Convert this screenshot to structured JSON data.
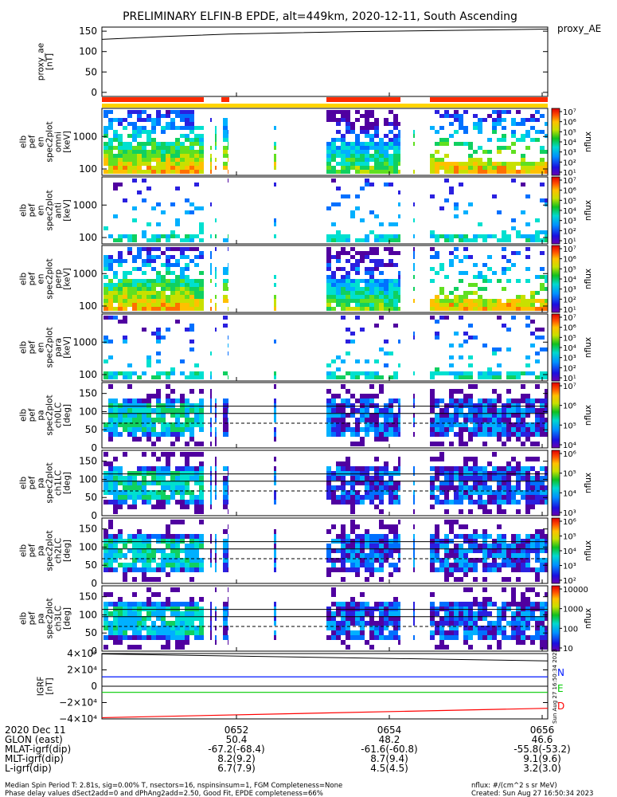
{
  "title": "PRELIMINARY ELFIN-B EPDE, alt=449km, 2020-12-11, South Ascending",
  "colors": {
    "bar_red": "#ff2a00",
    "bar_yellow": "#ffd400",
    "north": "#0018ff",
    "east": "#00cc00",
    "down": "#ff0000",
    "black": "#000000"
  },
  "chart_data": [
    {
      "type": "line",
      "panel": "proxy_ae",
      "ylabel": [
        "proxy_ae",
        "[nT]"
      ],
      "side_label": "proxy_AE",
      "ylim": [
        -10,
        160
      ],
      "yticks": [
        "150",
        "100",
        "50",
        "0"
      ],
      "x": [
        "0650.4",
        "0651",
        "0652",
        "0653",
        "0654",
        "0655",
        "0656",
        "0656.8"
      ],
      "values": [
        130,
        137,
        143,
        146,
        149,
        151,
        153,
        155
      ]
    },
    {
      "type": "heatmap",
      "panel": "elb_pef_en_spec2plot_omni",
      "ylabel": [
        "elb",
        "pef",
        "en",
        "spec2plot",
        "omni",
        "[keV]"
      ],
      "y_scale": "log",
      "yticks": [
        "1000",
        "100"
      ],
      "colorbar": {
        "label": "nflux",
        "ticks": [
          "10⁷",
          "10⁶",
          "10⁵",
          "10⁴",
          "10³",
          "10²",
          "10¹"
        ]
      }
    },
    {
      "type": "heatmap",
      "panel": "elb_pef_en_spec2plot_anti",
      "ylabel": [
        "elb",
        "pef",
        "en",
        "spec2plot",
        "anti",
        "[keV]"
      ],
      "y_scale": "log",
      "yticks": [
        "1000",
        "100"
      ],
      "colorbar": {
        "label": "nflux",
        "ticks": [
          "10⁷",
          "10⁶",
          "10⁵",
          "10⁴",
          "10³",
          "10²",
          "10¹"
        ]
      }
    },
    {
      "type": "heatmap",
      "panel": "elb_pef_en_spec2plot_perp",
      "ylabel": [
        "elb",
        "pef",
        "en",
        "spec2plot",
        "perp",
        "[keV]"
      ],
      "y_scale": "log",
      "yticks": [
        "1000",
        "100"
      ],
      "colorbar": {
        "label": "nflux",
        "ticks": [
          "10⁷",
          "10⁶",
          "10⁵",
          "10⁴",
          "10³",
          "10²",
          "10¹"
        ]
      }
    },
    {
      "type": "heatmap",
      "panel": "elb_pef_en_spec2plot_para",
      "ylabel": [
        "elb",
        "pef",
        "en",
        "spec2plot",
        "para",
        "[keV]"
      ],
      "y_scale": "log",
      "yticks": [
        "1000",
        "100"
      ],
      "colorbar": {
        "label": "nflux",
        "ticks": [
          "10⁷",
          "10⁶",
          "10⁵",
          "10⁴",
          "10³",
          "10²",
          "10¹"
        ]
      }
    },
    {
      "type": "heatmap",
      "panel": "elb_pef_pa_spec2plot_ch0LC",
      "ylabel": [
        "elb",
        "pef",
        "pa",
        "spec2plot",
        "ch0LC",
        "[deg]"
      ],
      "ylim": [
        0,
        180
      ],
      "yticks": [
        "150",
        "100",
        "50",
        "0"
      ],
      "colorbar": {
        "label": "nflux",
        "ticks": [
          "10⁷",
          "10⁶",
          "10⁵",
          "10⁴"
        ]
      }
    },
    {
      "type": "heatmap",
      "panel": "elb_pef_pa_spec2plot_ch1LC",
      "ylabel": [
        "elb",
        "pef",
        "pa",
        "spec2plot",
        "ch1LC",
        "[deg]"
      ],
      "ylim": [
        0,
        180
      ],
      "yticks": [
        "150",
        "100",
        "50",
        "0"
      ],
      "colorbar": {
        "label": "nflux",
        "ticks": [
          "10⁶",
          "10⁵",
          "10⁴",
          "10³"
        ]
      }
    },
    {
      "type": "heatmap",
      "panel": "elb_pef_pa_spec2plot_ch2LC",
      "ylabel": [
        "elb",
        "pef",
        "pa",
        "spec2plot",
        "ch2LC",
        "[deg]"
      ],
      "ylim": [
        0,
        180
      ],
      "yticks": [
        "150",
        "100",
        "50",
        "0"
      ],
      "colorbar": {
        "label": "nflux",
        "ticks": [
          "10⁶",
          "10⁵",
          "10⁴",
          "10³",
          "10²"
        ]
      }
    },
    {
      "type": "heatmap",
      "panel": "elb_pef_pa_spec2plot_ch3LC",
      "ylabel": [
        "elb",
        "pef",
        "pa",
        "spec2plot",
        "ch3LC",
        "[deg]"
      ],
      "ylim": [
        0,
        180
      ],
      "yticks": [
        "150",
        "100",
        "50",
        "0"
      ],
      "colorbar": {
        "label": "nflux",
        "ticks": [
          "10000",
          "1000",
          "100",
          "10"
        ]
      }
    },
    {
      "type": "line",
      "panel": "igrf",
      "ylabel": [
        "IGRF",
        "[nT]"
      ],
      "ylim": [
        -40000,
        40000
      ],
      "yticks": [
        "4×10⁴",
        "2×10⁴",
        "0",
        "−2×10⁴",
        "−4×10⁴"
      ],
      "x": [
        "0650.4",
        "0656.8"
      ],
      "series": [
        {
          "name": "N",
          "values": [
            11500,
            11500
          ]
        },
        {
          "name": "E",
          "values": [
            -7500,
            -7500
          ]
        },
        {
          "name": "D",
          "values": [
            -38500,
            -27000
          ]
        }
      ],
      "black_line": [
        39500,
        31000
      ]
    }
  ],
  "footer_strip": "Sun Aug 27 16:50:34 2023",
  "time_axis": {
    "row_labels": [
      "2020 Dec 11",
      "GLON (east)",
      "MLAT-igrf(dip)",
      "MLT-igrf(dip)",
      "L-igrf(dip)"
    ],
    "columns": [
      {
        "time": "0652",
        "glon": "50.4",
        "mlat": "-67.2(-68.4)",
        "mlt": "8.2(9.2)",
        "l": "6.7(7.9)"
      },
      {
        "time": "0654",
        "glon": "48.2",
        "mlat": "-61.6(-60.8)",
        "mlt": "8.7(9.4)",
        "l": "4.5(4.5)"
      },
      {
        "time": "0656",
        "glon": "46.6",
        "mlat": "-55.8(-53.2)",
        "mlt": "9.1(9.6)",
        "l": "3.2(3.0)"
      }
    ]
  },
  "footer": {
    "line1": "Median Spin Period T: 2.81s, sig=0.00% T, nsectors=16, nspinsinsum=1, FGM Completeness=None",
    "line2": "Phase delay values dSect2add=0 and dPhAng2add=2.50, Good Fit, EPDE completeness=66%",
    "units": "nflux: #/(cm^2 s sr MeV)",
    "created": "Created: Sun Aug 27 16:50:34 2023"
  }
}
